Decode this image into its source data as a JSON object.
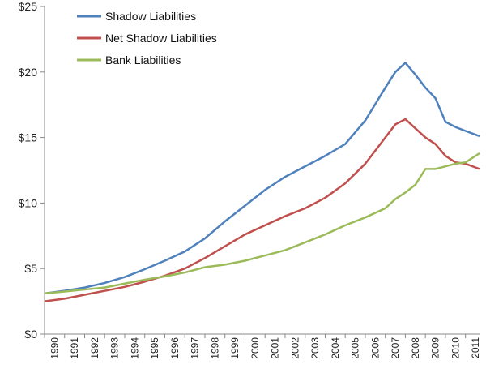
{
  "chart_data": {
    "type": "line",
    "title": "",
    "xlabel": "",
    "ylabel": "",
    "xlim": [
      1990,
      2011.7
    ],
    "ylim": [
      0,
      25
    ],
    "y_ticks": [
      {
        "value": 0,
        "label": "$0"
      },
      {
        "value": 5,
        "label": "$5"
      },
      {
        "value": 10,
        "label": "$10"
      },
      {
        "value": 15,
        "label": "$15"
      },
      {
        "value": 20,
        "label": "$20"
      },
      {
        "value": 25,
        "label": "$25"
      }
    ],
    "x_ticks": [
      "1990",
      "1991",
      "1992",
      "1993",
      "1994",
      "1995",
      "1996",
      "1997",
      "1998",
      "1999",
      "2000",
      "2001",
      "2002",
      "2003",
      "2004",
      "2005",
      "2006",
      "2007",
      "2008",
      "2009",
      "2010",
      "2011"
    ],
    "grid": false,
    "legend_position": "top-left",
    "series": [
      {
        "name": "Shadow Liabilities",
        "color": "#4f81bd",
        "points": [
          [
            1990,
            3.1
          ],
          [
            1991,
            3.3
          ],
          [
            1992,
            3.55
          ],
          [
            1993,
            3.9
          ],
          [
            1994,
            4.35
          ],
          [
            1995,
            4.95
          ],
          [
            1996,
            5.6
          ],
          [
            1997,
            6.3
          ],
          [
            1998,
            7.3
          ],
          [
            1999,
            8.6
          ],
          [
            2000,
            9.8
          ],
          [
            2001,
            11.0
          ],
          [
            2002,
            12.0
          ],
          [
            2003,
            12.8
          ],
          [
            2004,
            13.6
          ],
          [
            2005,
            14.5
          ],
          [
            2006,
            16.3
          ],
          [
            2007,
            18.8
          ],
          [
            2007.5,
            20.0
          ],
          [
            2008,
            20.7
          ],
          [
            2008.5,
            19.8
          ],
          [
            2009,
            18.8
          ],
          [
            2009.5,
            18.0
          ],
          [
            2010,
            16.2
          ],
          [
            2010.5,
            15.8
          ],
          [
            2011,
            15.5
          ],
          [
            2011.7,
            15.1
          ]
        ]
      },
      {
        "name": "Net Shadow Liabilities",
        "color": "#c0504d",
        "points": [
          [
            1990,
            2.5
          ],
          [
            1991,
            2.7
          ],
          [
            1992,
            3.0
          ],
          [
            1993,
            3.3
          ],
          [
            1994,
            3.6
          ],
          [
            1995,
            4.0
          ],
          [
            1996,
            4.45
          ],
          [
            1997,
            5.0
          ],
          [
            1998,
            5.8
          ],
          [
            1999,
            6.7
          ],
          [
            2000,
            7.6
          ],
          [
            2001,
            8.3
          ],
          [
            2002,
            9.0
          ],
          [
            2003,
            9.6
          ],
          [
            2004,
            10.4
          ],
          [
            2005,
            11.5
          ],
          [
            2006,
            13.0
          ],
          [
            2007,
            15.0
          ],
          [
            2007.5,
            16.0
          ],
          [
            2008,
            16.4
          ],
          [
            2008.5,
            15.7
          ],
          [
            2009,
            15.0
          ],
          [
            2009.5,
            14.5
          ],
          [
            2010,
            13.6
          ],
          [
            2010.5,
            13.1
          ],
          [
            2011,
            13.0
          ],
          [
            2011.7,
            12.6
          ]
        ]
      },
      {
        "name": "Bank Liabilities",
        "color": "#9bbb59",
        "points": [
          [
            1990,
            3.1
          ],
          [
            1991,
            3.25
          ],
          [
            1992,
            3.4
          ],
          [
            1993,
            3.55
          ],
          [
            1994,
            3.85
          ],
          [
            1995,
            4.15
          ],
          [
            1996,
            4.4
          ],
          [
            1997,
            4.7
          ],
          [
            1998,
            5.1
          ],
          [
            1999,
            5.3
          ],
          [
            2000,
            5.6
          ],
          [
            2001,
            6.0
          ],
          [
            2002,
            6.4
          ],
          [
            2003,
            7.0
          ],
          [
            2004,
            7.6
          ],
          [
            2005,
            8.3
          ],
          [
            2006,
            8.9
          ],
          [
            2007,
            9.6
          ],
          [
            2007.5,
            10.3
          ],
          [
            2008,
            10.8
          ],
          [
            2008.5,
            11.4
          ],
          [
            2009,
            12.6
          ],
          [
            2009.5,
            12.6
          ],
          [
            2010,
            12.8
          ],
          [
            2010.5,
            13.0
          ],
          [
            2011,
            13.1
          ],
          [
            2011.7,
            13.8
          ]
        ]
      }
    ]
  }
}
